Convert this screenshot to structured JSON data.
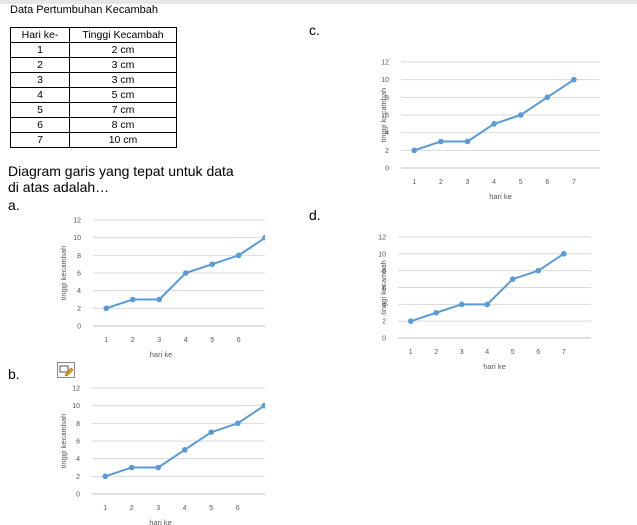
{
  "title": "Data Pertumbuhan Kecambah",
  "table": {
    "headers": [
      "Hari ke-",
      "Tinggi Kecambah"
    ],
    "rows": [
      [
        "1",
        "2 cm"
      ],
      [
        "2",
        "3 cm"
      ],
      [
        "3",
        "3 cm"
      ],
      [
        "4",
        "5 cm"
      ],
      [
        "5",
        "7 cm"
      ],
      [
        "6",
        "8 cm"
      ],
      [
        "7",
        "10 cm"
      ]
    ]
  },
  "question": "Diagram garis yang tepat untuk data di atas adalah…",
  "options": {
    "a": "a.",
    "b": "b.",
    "c": "c.",
    "d": "d."
  },
  "chart_data": [
    {
      "option": "a",
      "type": "line",
      "xlabel": "hari ke",
      "ylabel": "tinggi kecambah",
      "x": [
        1,
        2,
        3,
        4,
        5,
        6,
        7
      ],
      "values": [
        2,
        3,
        3,
        6,
        7,
        8,
        10
      ],
      "xticks": [
        1,
        2,
        3,
        4,
        5,
        6
      ],
      "yticks": [
        0,
        2,
        4,
        6,
        8,
        10,
        12
      ],
      "ylim": [
        0,
        12
      ],
      "grid": true,
      "color": "#5b9bd5"
    },
    {
      "option": "b",
      "type": "line",
      "xlabel": "hari ke",
      "ylabel": "tinggi kecambah",
      "x": [
        1,
        2,
        3,
        4,
        5,
        6,
        7
      ],
      "values": [
        2,
        3,
        3,
        5,
        7,
        8,
        10
      ],
      "xticks": [
        1,
        2,
        3,
        4,
        5,
        6
      ],
      "yticks": [
        0,
        2,
        4,
        6,
        8,
        10,
        12
      ],
      "ylim": [
        0,
        12
      ],
      "grid": true,
      "color": "#5b9bd5"
    },
    {
      "option": "c",
      "type": "line",
      "xlabel": "hari ke",
      "ylabel": "tinggi kecambah",
      "x": [
        1,
        2,
        3,
        4,
        5,
        6,
        7
      ],
      "values": [
        2,
        3,
        3,
        5,
        6,
        8,
        10
      ],
      "xticks": [
        1,
        2,
        3,
        4,
        5,
        6,
        7
      ],
      "yticks": [
        0,
        2,
        4,
        6,
        8,
        10,
        12
      ],
      "ylim": [
        0,
        12
      ],
      "grid": true,
      "color": "#5b9bd5"
    },
    {
      "option": "d",
      "type": "line",
      "xlabel": "hari ke",
      "ylabel": "tinggi kecambah",
      "x": [
        1,
        2,
        3,
        4,
        5,
        6,
        7
      ],
      "values": [
        2,
        3,
        4,
        4,
        7,
        8,
        10
      ],
      "xticks": [
        1,
        2,
        3,
        4,
        5,
        6,
        7
      ],
      "yticks": [
        0,
        2,
        4,
        6,
        8,
        10,
        12
      ],
      "ylim": [
        0,
        12
      ],
      "grid": true,
      "color": "#5b9bd5"
    }
  ]
}
